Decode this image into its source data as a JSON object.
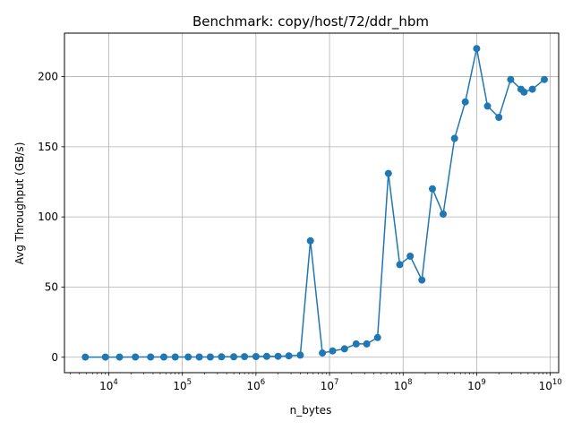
{
  "chart_data": {
    "type": "line",
    "title": "Benchmark: copy/host/72/ddr_hbm",
    "xlabel": "n_bytes",
    "ylabel": "Avg Throughput (GB/s)",
    "xscale": "log",
    "xlim": [
      2500,
      13000000000
    ],
    "ylim": [
      -11,
      231
    ],
    "grid": true,
    "color": "#1f77b4",
    "marker": "circle",
    "xticks": [
      {
        "value": 10000,
        "base": "10",
        "exp": "4"
      },
      {
        "value": 100000,
        "base": "10",
        "exp": "5"
      },
      {
        "value": 1000000,
        "base": "10",
        "exp": "6"
      },
      {
        "value": 10000000,
        "base": "10",
        "exp": "7"
      },
      {
        "value": 100000000,
        "base": "10",
        "exp": "8"
      },
      {
        "value": 1000000000,
        "base": "10",
        "exp": "9"
      },
      {
        "value": 10000000000,
        "base": "10",
        "exp": "10"
      }
    ],
    "yticks": [
      0,
      50,
      100,
      150,
      200
    ],
    "series": [
      {
        "x": [
          4800,
          9000,
          14000,
          23000,
          37000,
          56000,
          80000,
          120000,
          170000,
          240000,
          340000,
          500000,
          700000,
          1000000,
          1400000,
          2000000,
          2800000,
          4000000,
          5500000,
          8000000,
          11000000,
          16000000,
          23000000,
          32000000,
          45000000,
          63000000,
          90000000,
          125000000,
          180000000,
          250000000,
          350000000,
          500000000,
          700000000,
          1000000000,
          1400000000,
          2000000000,
          2900000000,
          4000000000,
          4400000000,
          5700000000,
          8300000000
        ],
        "y": [
          0.1,
          0.1,
          0.1,
          0.2,
          0.2,
          0.2,
          0.2,
          0.2,
          0.2,
          0.2,
          0.3,
          0.3,
          0.4,
          0.5,
          0.6,
          0.7,
          1.0,
          1.5,
          83,
          3,
          4.5,
          6,
          9.5,
          9.5,
          14,
          131,
          66,
          72,
          55,
          120,
          102,
          156,
          182,
          220,
          179,
          171,
          198,
          191,
          189,
          191,
          198
        ]
      }
    ]
  }
}
